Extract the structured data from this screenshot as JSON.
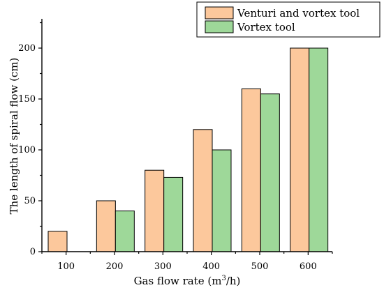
{
  "chart_data": {
    "type": "bar",
    "categories": [
      "100",
      "200",
      "300",
      "400",
      "500",
      "600"
    ],
    "series": [
      {
        "name": "Venturi and vortex tool",
        "color": "#fcc89c",
        "values": [
          20,
          50,
          80,
          120,
          160,
          200
        ]
      },
      {
        "name": "Vortex tool",
        "color": "#9ed899",
        "values": [
          null,
          40,
          73,
          100,
          155,
          200
        ]
      }
    ],
    "xlabel": "Gas flow rate (m3/h)",
    "xlabel_main": "Gas flow rate (m",
    "xlabel_sup": "3",
    "xlabel_tail": "/h)",
    "ylabel": "The length of spiral flow (cm)",
    "ylim": [
      0,
      230
    ],
    "yticks": [
      0,
      50,
      100,
      150,
      200
    ],
    "grid": false,
    "legend_position": "top-right"
  }
}
